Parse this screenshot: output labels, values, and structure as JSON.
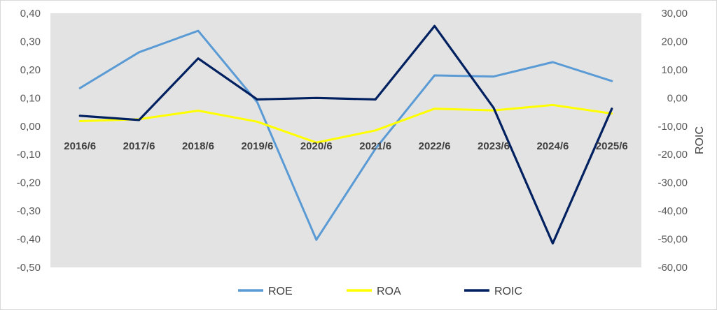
{
  "chart_data": {
    "type": "line",
    "categories": [
      "2016/6",
      "2017/6",
      "2018/6",
      "2019/6",
      "2020/6",
      "2021/6",
      "2022/6",
      "2023/6",
      "2024/6",
      "2025/6"
    ],
    "series": [
      {
        "name": "ROE",
        "axis": "left",
        "color": "#5b9bd5",
        "values": [
          0.135,
          0.262,
          0.338,
          0.085,
          -0.402,
          -0.08,
          0.18,
          0.176,
          0.227,
          0.16
        ]
      },
      {
        "name": "ROA",
        "axis": "left",
        "color": "#ffff00",
        "values": [
          0.018,
          0.025,
          0.055,
          0.016,
          -0.058,
          -0.015,
          0.062,
          0.056,
          0.075,
          0.045
        ]
      },
      {
        "name": "ROIC",
        "axis": "right",
        "color": "#002060",
        "values": [
          -6.3,
          -7.8,
          14.0,
          -0.5,
          0.0,
          -0.5,
          25.5,
          -3.5,
          -51.5,
          -3.8
        ]
      }
    ],
    "y_left": {
      "ylim": [
        -0.5,
        0.4
      ],
      "ticks": [
        "0,40",
        "0,30",
        "0,20",
        "0,10",
        "0,00",
        "-0,10",
        "-0,20",
        "-0,30",
        "-0,40",
        "-0,50"
      ],
      "tick_values": [
        0.4,
        0.3,
        0.2,
        0.1,
        0.0,
        -0.1,
        -0.2,
        -0.3,
        -0.4,
        -0.5
      ]
    },
    "y_right": {
      "label": "ROIC",
      "ylim": [
        -60,
        30
      ],
      "ticks": [
        "30,00",
        "20,00",
        "10,00",
        "0,00",
        "-10,00",
        "-20,00",
        "-30,00",
        "-40,00",
        "-50,00",
        "-60,00"
      ],
      "tick_values": [
        30,
        20,
        10,
        0,
        -10,
        -20,
        -30,
        -40,
        -50,
        -60
      ]
    },
    "plot_background": "#e3e3e3",
    "grid": false,
    "legend_position": "bottom"
  }
}
